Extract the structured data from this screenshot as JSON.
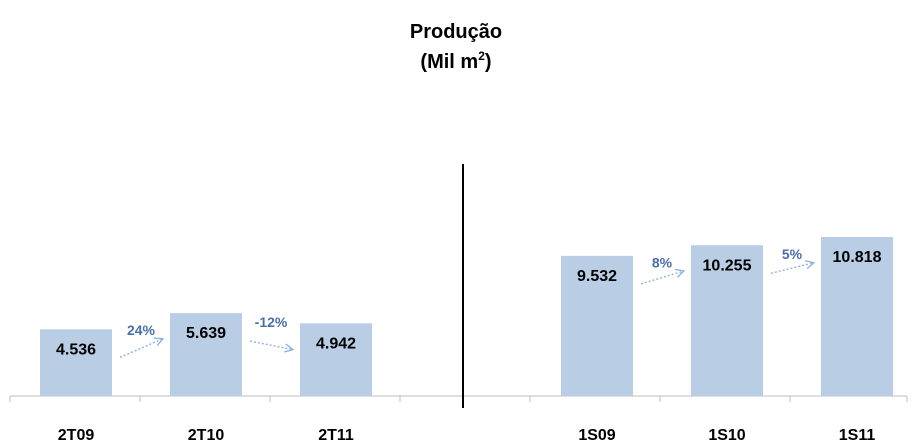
{
  "chart_data": {
    "type": "bar",
    "title": "Produção",
    "subtitle_prefix": "(Mil m",
    "subtitle_sup": "2",
    "subtitle_suffix": ")",
    "bar_color": "#b9cde5",
    "growth_color": "#4a6fa5",
    "groups": [
      {
        "categories": [
          "2T09",
          "2T10",
          "2T11"
        ],
        "values": [
          4536,
          5639,
          4942
        ],
        "value_labels": [
          "4.536",
          "5.639",
          "4.942"
        ],
        "growth_labels": [
          "24%",
          "-12%"
        ]
      },
      {
        "categories": [
          "1S09",
          "1S10",
          "1S11"
        ],
        "values": [
          9532,
          10255,
          10818
        ],
        "value_labels": [
          "9.532",
          "10.255",
          "10.818"
        ],
        "growth_labels": [
          "8%",
          "5%"
        ]
      }
    ]
  }
}
